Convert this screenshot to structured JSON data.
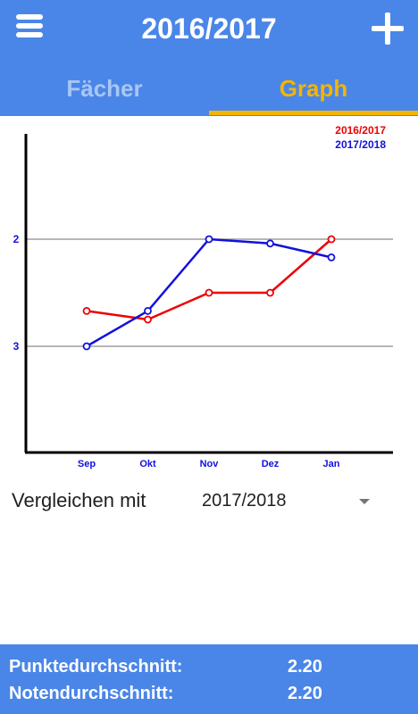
{
  "header": {
    "title": "2016/2017",
    "menu_icon": "hamburger-menu-icon",
    "add_icon": "plus-icon",
    "color": "#4a86e8"
  },
  "tabs": [
    {
      "label": "Fächer",
      "active": false
    },
    {
      "label": "Graph",
      "active": true
    }
  ],
  "accent_color": "#f4b400",
  "chart_data": {
    "type": "line",
    "categories": [
      "Sep",
      "Okt",
      "Nov",
      "Dez",
      "Jan"
    ],
    "y_ticks": [
      {
        "value": 2,
        "label": "2"
      },
      {
        "value": 3,
        "label": "3"
      }
    ],
    "ylim": [
      4,
      1
    ],
    "y_inverted": true,
    "grid": true,
    "legend_position": "top-right",
    "series": [
      {
        "name": "2016/2017",
        "color": "#ee0000",
        "values": [
          2.67,
          2.75,
          2.5,
          2.5,
          2.0
        ]
      },
      {
        "name": "2017/2018",
        "color": "#1111dd",
        "values": [
          3.0,
          2.67,
          2.0,
          2.04,
          2.17
        ]
      }
    ]
  },
  "compare": {
    "label": "Vergleichen mit",
    "selected": "2017/2018"
  },
  "footer": {
    "color": "#4a86e8",
    "rows": [
      {
        "label": "Punktedurchschnitt:",
        "value": "2.20"
      },
      {
        "label": "Notendurchschnitt:",
        "value": "2.20"
      }
    ]
  }
}
